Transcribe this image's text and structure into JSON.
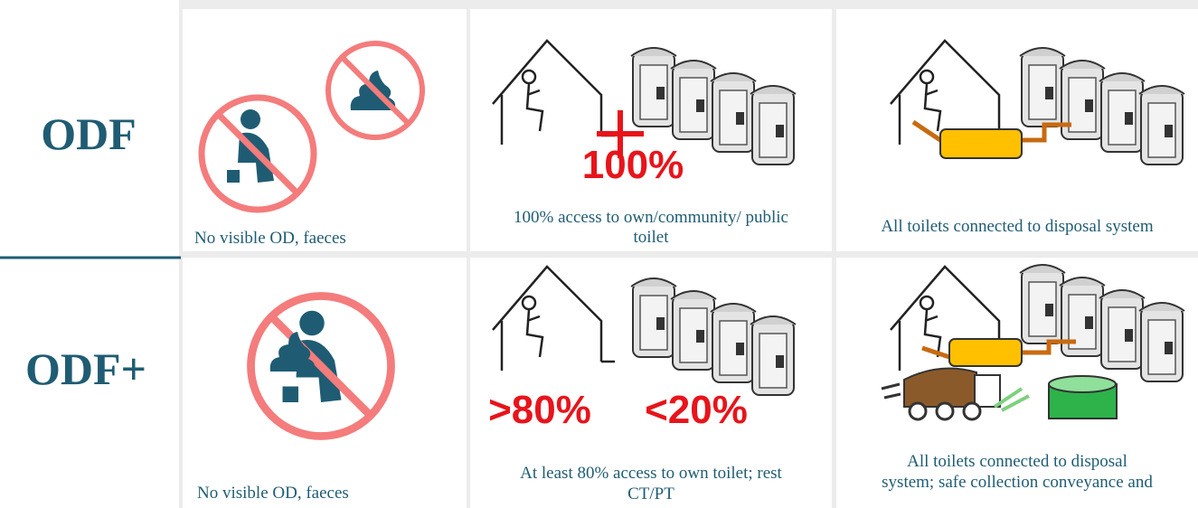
{
  "rows": [
    {
      "label": "ODF",
      "cells": [
        {
          "caption_lines": [
            "No visible OD, faeces"
          ]
        },
        {
          "figure_labels": [
            "100%"
          ],
          "caption_lines": [
            "100% access to own/community/ public",
            "toilet"
          ]
        },
        {
          "caption_lines": [
            "All toilets connected to disposal system"
          ]
        }
      ]
    },
    {
      "label": "ODF+",
      "cells": [
        {
          "caption_lines": [
            "No visible OD, faeces"
          ]
        },
        {
          "figure_labels": [
            ">80%",
            "<20%"
          ],
          "caption_lines": [
            "At least 80% access to own toilet; rest",
            "CT/PT"
          ]
        },
        {
          "caption_lines": [
            "All toilets connected to disposal",
            "system; safe collection conveyance and"
          ]
        }
      ]
    }
  ]
}
